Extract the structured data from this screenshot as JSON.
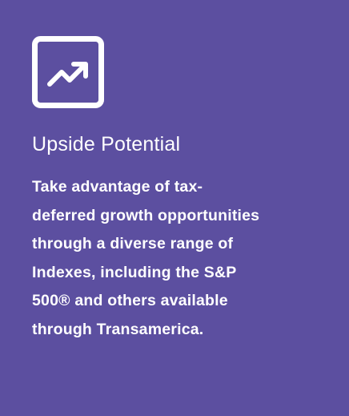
{
  "title": "Upside Potential",
  "body": {
    "lines": [
      "Take advantage of tax-",
      "deferred growth opportunities",
      "through a diverse range of",
      "Indexes, including the S&P",
      "500® and others available",
      "through Transamerica."
    ]
  }
}
